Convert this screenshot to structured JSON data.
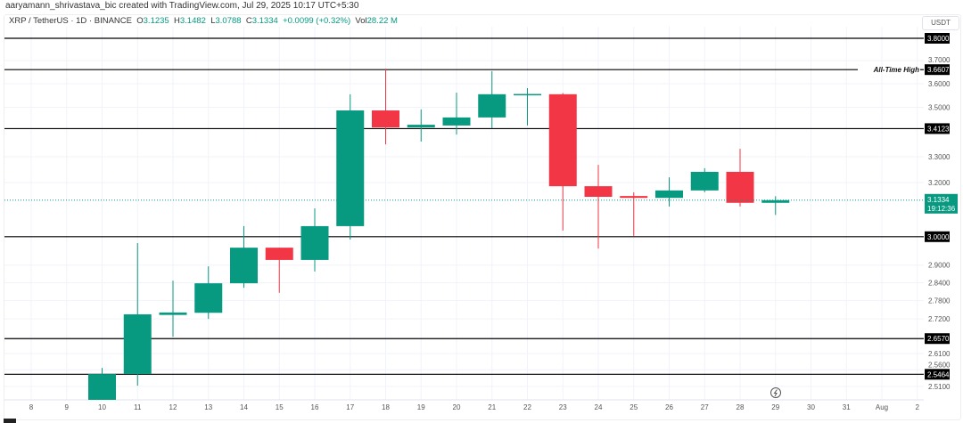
{
  "credit": "aaryamann_shrivastava_bic created with TradingView.com, Jul 29, 2025 10:17 UTC+5:30",
  "legend": {
    "symbol": "XRP / TetherUS · 1D · BINANCE",
    "o_label": "O",
    "o": "3.1235",
    "h_label": "H",
    "h": "3.1482",
    "l_label": "L",
    "l": "3.0788",
    "c_label": "C",
    "c": "3.1334",
    "change": "+0.0099 (+0.32%)",
    "vol_label": "Vol",
    "vol": "28.22 M"
  },
  "unit": "USDT",
  "colors": {
    "up": "#089981",
    "down": "#f23645",
    "line": "#000000",
    "grid": "#f0f3fa"
  },
  "icons": [
    "lightning-icon",
    "tradingview-logo"
  ],
  "chart_data": {
    "type": "candlestick",
    "scale": "log",
    "ylim": [
      2.47,
      3.85
    ],
    "grid": true,
    "y_ticks": [
      "3.7000",
      "3.6000",
      "3.5000",
      "3.3000",
      "3.2000",
      "2.9000",
      "2.8400",
      "2.7800",
      "2.7200",
      "2.6100",
      "2.5600",
      "2.5100"
    ],
    "x_labels": [
      "8",
      "9",
      "10",
      "11",
      "12",
      "13",
      "14",
      "15",
      "16",
      "17",
      "18",
      "19",
      "20",
      "21",
      "22",
      "23",
      "24",
      "25",
      "26",
      "27",
      "28",
      "29",
      "30",
      "31",
      "Aug",
      "2"
    ],
    "candles": [
      {
        "day": "10",
        "o": 2.47,
        "h": 2.566,
        "l": 2.47,
        "c": 2.547
      },
      {
        "day": "11",
        "o": 2.547,
        "h": 2.977,
        "l": 2.512,
        "c": 2.735
      },
      {
        "day": "12",
        "o": 2.733,
        "h": 2.847,
        "l": 2.663,
        "c": 2.741
      },
      {
        "day": "13",
        "o": 2.74,
        "h": 2.896,
        "l": 2.72,
        "c": 2.838
      },
      {
        "day": "14",
        "o": 2.838,
        "h": 3.038,
        "l": 2.823,
        "c": 2.961
      },
      {
        "day": "15",
        "o": 2.961,
        "h": 2.961,
        "l": 2.806,
        "c": 2.918
      },
      {
        "day": "16",
        "o": 2.918,
        "h": 3.103,
        "l": 2.878,
        "c": 3.038
      },
      {
        "day": "17",
        "o": 3.038,
        "h": 3.555,
        "l": 2.99,
        "c": 3.487
      },
      {
        "day": "18",
        "o": 3.487,
        "h": 3.665,
        "l": 3.349,
        "c": 3.417
      },
      {
        "day": "19",
        "o": 3.417,
        "h": 3.491,
        "l": 3.36,
        "c": 3.428
      },
      {
        "day": "20",
        "o": 3.425,
        "h": 3.562,
        "l": 3.388,
        "c": 3.458
      },
      {
        "day": "21",
        "o": 3.458,
        "h": 3.654,
        "l": 3.413,
        "c": 3.555
      },
      {
        "day": "22",
        "o": 3.555,
        "h": 3.581,
        "l": 3.425,
        "c": 3.556
      },
      {
        "day": "23",
        "o": 3.555,
        "h": 3.56,
        "l": 3.022,
        "c": 3.186
      },
      {
        "day": "24",
        "o": 3.186,
        "h": 3.268,
        "l": 2.958,
        "c": 3.146
      },
      {
        "day": "25",
        "o": 3.149,
        "h": 3.163,
        "l": 3.003,
        "c": 3.142
      },
      {
        "day": "26",
        "o": 3.142,
        "h": 3.22,
        "l": 3.11,
        "c": 3.17
      },
      {
        "day": "27",
        "o": 3.17,
        "h": 3.255,
        "l": 3.163,
        "c": 3.241
      },
      {
        "day": "28",
        "o": 3.241,
        "h": 3.331,
        "l": 3.11,
        "c": 3.1235
      },
      {
        "day": "29",
        "o": 3.1235,
        "h": 3.1482,
        "l": 3.0788,
        "c": 3.1334
      }
    ],
    "levels": [
      {
        "value": 3.8,
        "label": "3.8000"
      },
      {
        "value": 3.6607,
        "label": "3.6607",
        "annotation": "All-Time High"
      },
      {
        "value": 3.4123,
        "label": "3.4123"
      },
      {
        "value": 3.0,
        "label": "3.0000"
      },
      {
        "value": 2.657,
        "label": "2.6570"
      },
      {
        "value": 2.5464,
        "label": "2.5464"
      }
    ],
    "current": {
      "value": 3.1334,
      "label": "3.1334",
      "countdown": "19:12:36"
    }
  }
}
